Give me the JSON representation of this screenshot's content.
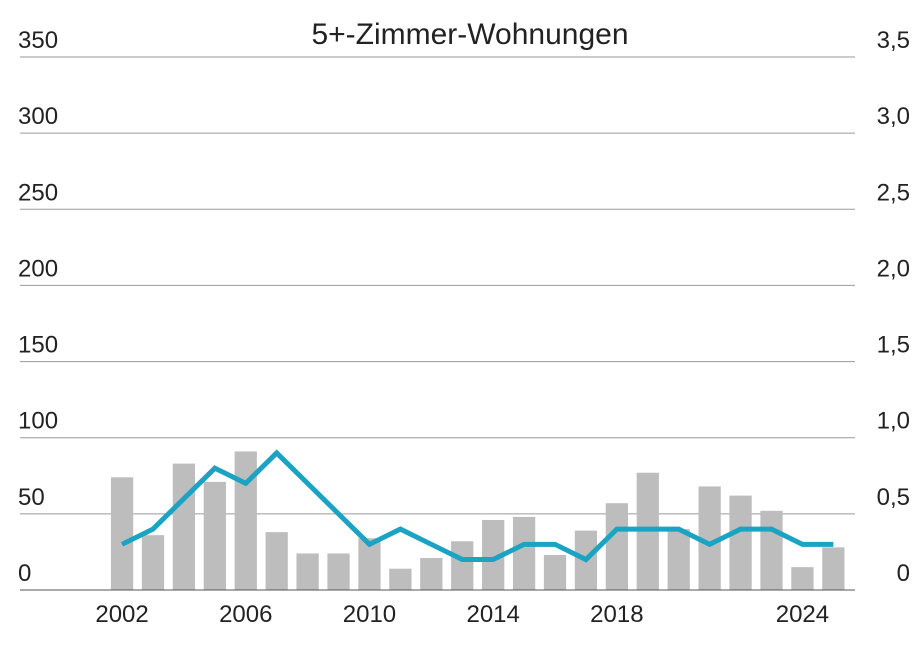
{
  "chart_data": {
    "type": "bar_line",
    "title": "5+-Zimmer-Wohnungen",
    "x": [
      2002,
      2003,
      2004,
      2005,
      2006,
      2007,
      2008,
      2009,
      2010,
      2011,
      2012,
      2013,
      2014,
      2015,
      2016,
      2017,
      2018,
      2019,
      2020,
      2021,
      2022,
      2023,
      2024,
      2025
    ],
    "xlim": [
      1998.7,
      2025.7
    ],
    "xticks": [
      2002,
      2006,
      2010,
      2014,
      2018,
      2024
    ],
    "series": [
      {
        "type": "bar",
        "color": "#bdbdbd",
        "values": [
          74,
          36,
          83,
          71,
          91,
          38,
          24,
          24,
          34,
          14,
          21,
          32,
          46,
          48,
          23,
          39,
          57,
          77,
          40,
          68,
          62,
          52,
          15,
          28
        ]
      },
      {
        "type": "line",
        "axis": "y2",
        "color": "#1aa3c2",
        "values": [
          0.3,
          0.4,
          0.6,
          0.8,
          0.7,
          0.9,
          0.7,
          0.5,
          0.3,
          0.4,
          0.3,
          0.2,
          0.2,
          0.3,
          0.3,
          0.2,
          0.4,
          0.4,
          0.4,
          0.3,
          0.4,
          0.4,
          0.3,
          0.3
        ]
      }
    ],
    "ylim": [
      0,
      350
    ],
    "yticks": [
      0,
      50,
      100,
      150,
      200,
      250,
      300,
      350
    ],
    "y2lim": [
      0,
      3.5
    ],
    "y2ticks": [
      0,
      {
        "value": 0.5,
        "label": "0,5"
      },
      {
        "value": 1,
        "label": "1,0"
      },
      {
        "value": 1.5,
        "label": "1,5"
      },
      {
        "value": 2,
        "label": "2,0"
      },
      {
        "value": 2.5,
        "label": "2,5"
      },
      {
        "value": 3,
        "label": "3,0"
      },
      {
        "value": 3.5,
        "label": "3,5"
      }
    ],
    "grid": true
  }
}
